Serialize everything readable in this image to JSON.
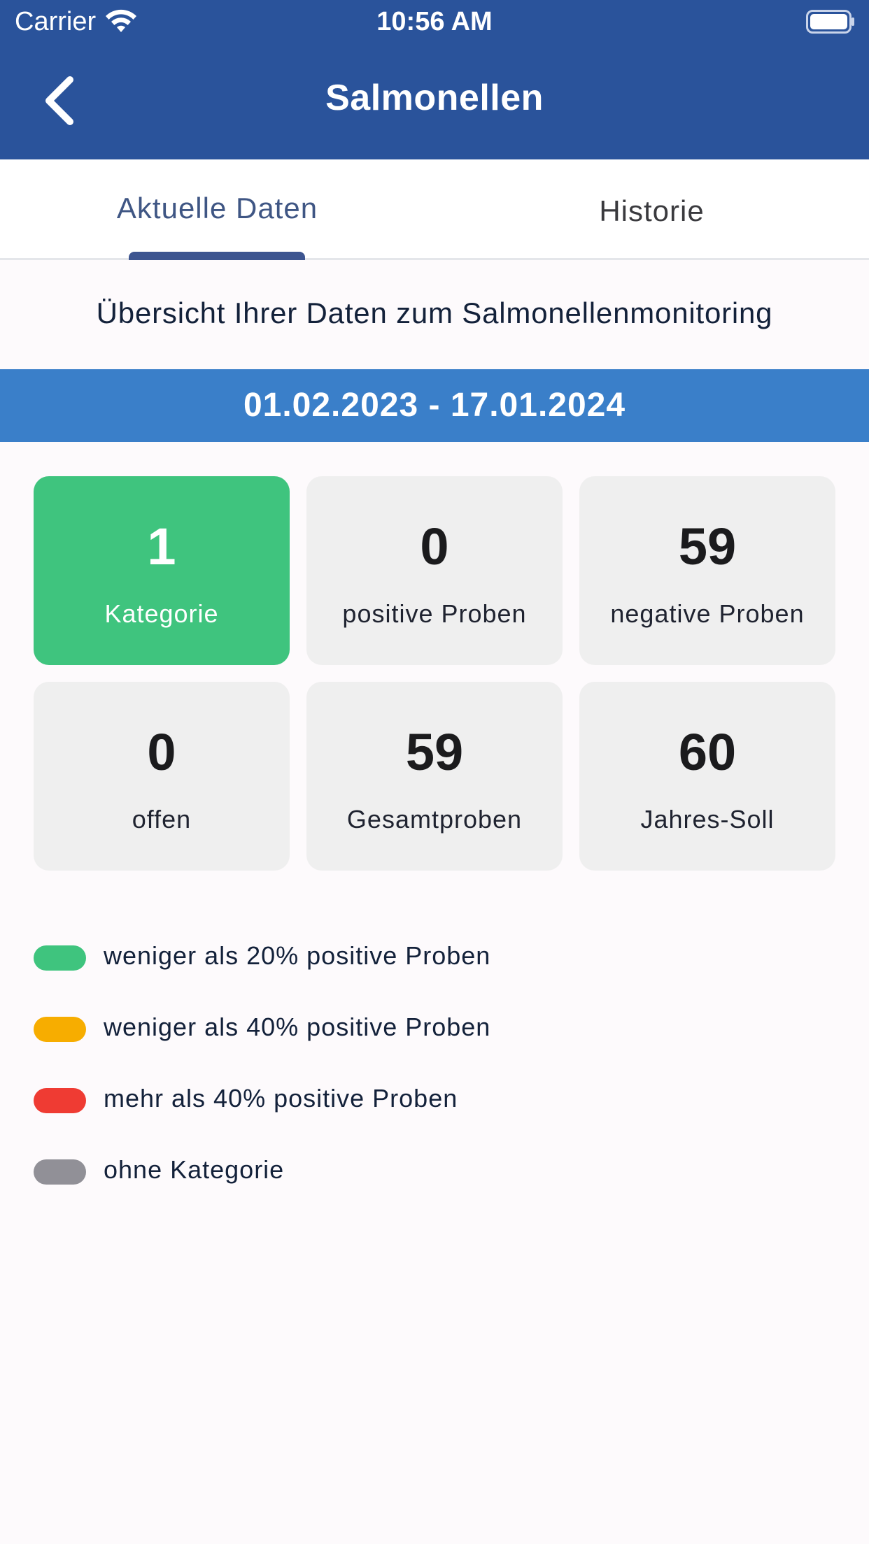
{
  "status_bar": {
    "carrier": "Carrier",
    "time": "10:56 AM",
    "wifi_icon": "wifi-icon",
    "battery_icon": "battery-icon"
  },
  "header": {
    "title": "Salmonellen",
    "back_icon": "chevron-left-icon"
  },
  "tabs": [
    {
      "label": "Aktuelle Daten",
      "selected": true
    },
    {
      "label": "Historie",
      "selected": false
    }
  ],
  "overview_text": "Übersicht Ihrer Daten zum Salmonellenmonitoring",
  "date_range": "01.02.2023 - 17.01.2024",
  "tiles": [
    {
      "value": "1",
      "label": "Kategorie",
      "color": "#3fc47e"
    },
    {
      "value": "0",
      "label": "positive Proben",
      "color": "#efefef"
    },
    {
      "value": "59",
      "label": "negative Proben",
      "color": "#efefef"
    },
    {
      "value": "0",
      "label": "offen",
      "color": "#efefef"
    },
    {
      "value": "59",
      "label": "Gesamtproben",
      "color": "#efefef"
    },
    {
      "value": "60",
      "label": "Jahres-Soll",
      "color": "#efefef"
    }
  ],
  "legend": [
    {
      "label": "weniger als 20% positive Proben",
      "color": "#3fc47e"
    },
    {
      "label": "weniger als 40% positive Proben",
      "color": "#f7ad00"
    },
    {
      "label": "mehr als 40% positive Proben",
      "color": "#ef3b33"
    },
    {
      "label": "ohne Kategorie",
      "color": "#919097"
    }
  ],
  "colors": {
    "header": "#2a539b",
    "date_bar": "#3a7fc9",
    "tab_indicator": "#3d5590"
  }
}
